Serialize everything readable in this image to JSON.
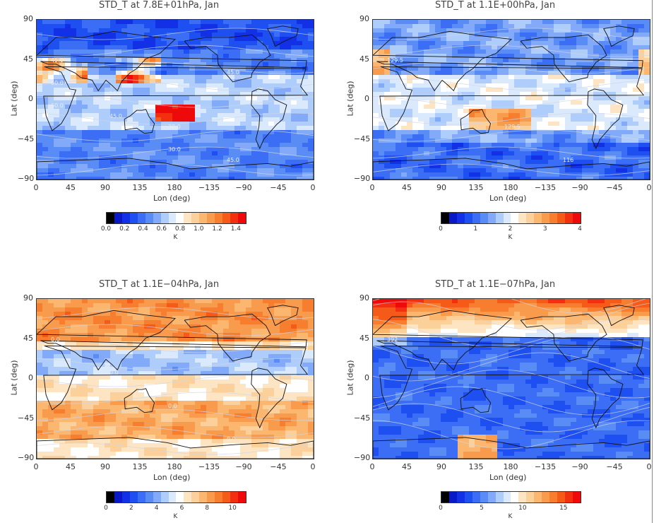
{
  "colors": {
    "ramp": [
      "#000000",
      "#0a19c8",
      "#1230e6",
      "#1e4ff0",
      "#3c6ef5",
      "#5a8cf5",
      "#82aaf8",
      "#afcdfa",
      "#dbe9fc",
      "#ffffff",
      "#fde5c4",
      "#fcd09a",
      "#fbb670",
      "#f99b4c",
      "#f77e2e",
      "#f55a18",
      "#f23010",
      "#ee0a0a"
    ],
    "land_outline": "#111111",
    "contour": "#cfd6e6"
  },
  "chart_data": [
    {
      "type": "heatmap",
      "title": "STD_T  at  7.8E+01hPa, Jan",
      "xlabel": "Lon (deg)",
      "ylabel": "Lat (deg)",
      "x_ticks": [
        "0",
        "45",
        "90",
        "135",
        "180",
        "−135",
        "−90",
        "−45",
        "0"
      ],
      "y_ticks": [
        "90",
        "45",
        "0",
        "−45",
        "−90"
      ],
      "colorbar_ticks": [
        "0.0",
        "0.2",
        "0.4",
        "0.6",
        "0.8",
        "1.0",
        "1.2",
        "1.4"
      ],
      "colorbar_range": [
        0,
        1.5
      ],
      "unit": "K",
      "contour_labels": [
        "45.0",
        "15.0",
        "30.0",
        "45.0",
        "60.0",
        "45.0",
        "30.0",
        "45.0",
        "60.0"
      ]
    },
    {
      "type": "heatmap",
      "title": "STD_T  at  1.1E+00hPa, Jan",
      "xlabel": "Lon (deg)",
      "ylabel": "Lat (deg)",
      "x_ticks": [
        "0",
        "45",
        "90",
        "135",
        "180",
        "−135",
        "−90",
        "−45",
        "0"
      ],
      "y_ticks": [
        "90",
        "45",
        "0",
        "−45",
        "−90"
      ],
      "colorbar_ticks": [
        "0",
        "1",
        "2",
        "3",
        "4"
      ],
      "colorbar_range": [
        0,
        4
      ],
      "unit": "K",
      "contour_labels": [
        "129.5",
        "129.5",
        "129.5",
        "116"
      ]
    },
    {
      "type": "heatmap",
      "title": "STD_T  at  1.1E−04hPa, Jan",
      "xlabel": "Lon (deg)",
      "ylabel": "Lat (deg)",
      "x_ticks": [
        "0",
        "45",
        "90",
        "135",
        "180",
        "−135",
        "−90",
        "−45",
        "0"
      ],
      "y_ticks": [
        "90",
        "45",
        "0",
        "−45",
        "−90"
      ],
      "colorbar_ticks": [
        "0",
        "2",
        "4",
        "6",
        "8",
        "10"
      ],
      "colorbar_range": [
        0,
        11
      ],
      "unit": "K",
      "contour_labels": [
        "0.0",
        "0.0",
        "0.0",
        "0.0"
      ]
    },
    {
      "type": "heatmap",
      "title": "STD_T  at  1.1E−07hPa, Jan",
      "xlabel": "Lon (deg)",
      "ylabel": "Lat (deg)",
      "x_ticks": [
        "0",
        "45",
        "90",
        "135",
        "180",
        "−135",
        "−90",
        "−45",
        "0"
      ],
      "y_ticks": [
        "90",
        "45",
        "0",
        "−45",
        "−90"
      ],
      "colorbar_ticks": [
        "0",
        "5",
        "10",
        "15"
      ],
      "colorbar_range": [
        0,
        17
      ],
      "unit": "K",
      "contour_labels": [
        "392"
      ]
    }
  ]
}
